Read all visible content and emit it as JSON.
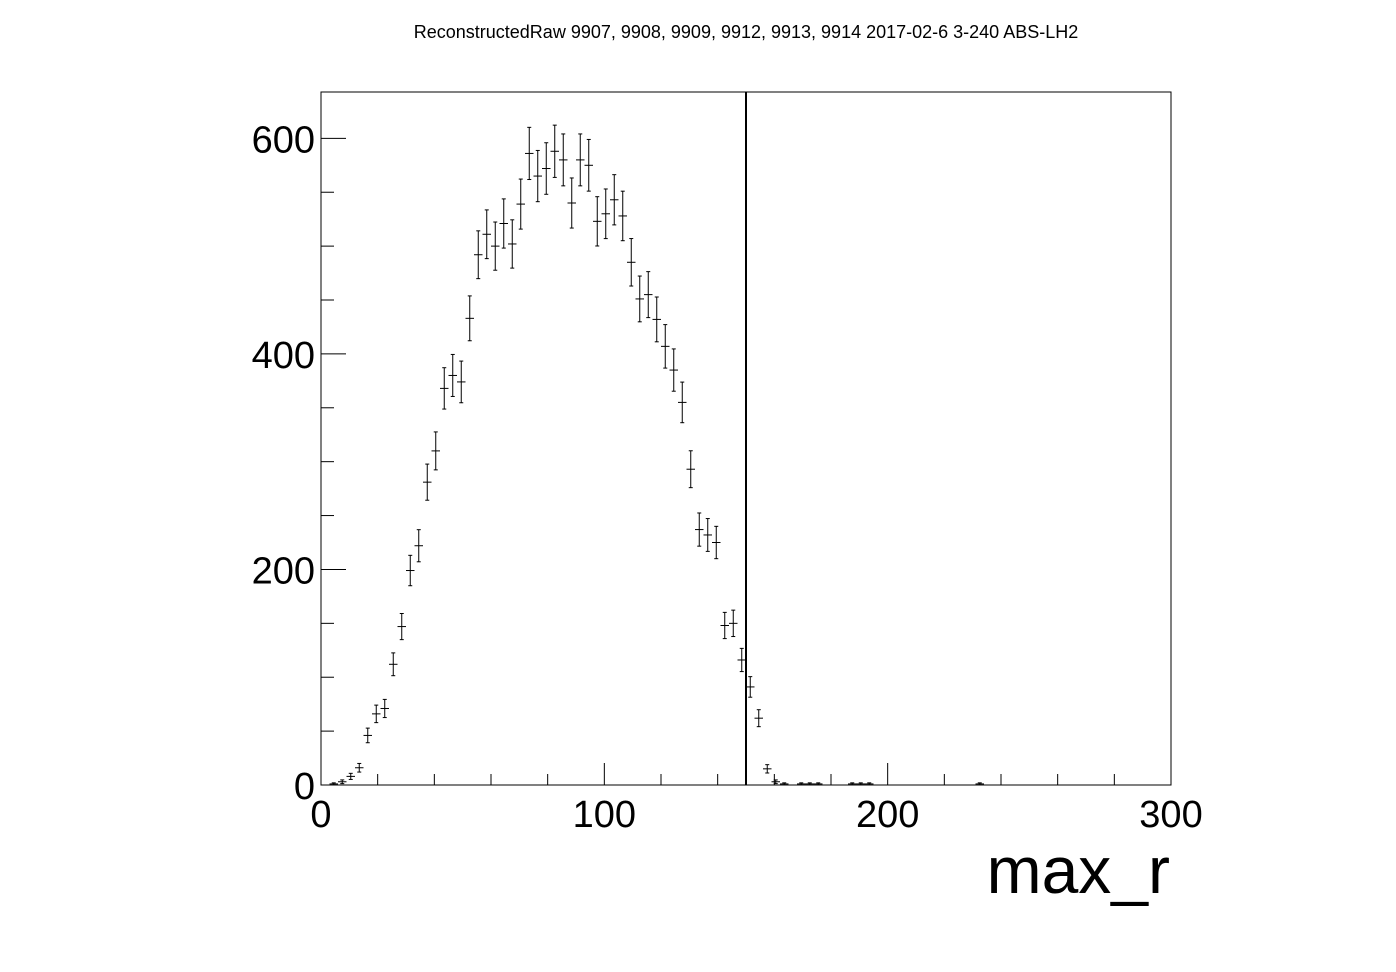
{
  "chart_data": {
    "type": "scatter",
    "title": "ReconstructedRaw 9907, 9908, 9909, 9912, 9913, 9914 2017-02-6 3-240 ABS-LH2",
    "xlabel": "max_r",
    "ylabel": "",
    "xlim": [
      0,
      300
    ],
    "ylim": [
      0,
      643
    ],
    "x_ticks": [
      "0",
      "100",
      "200",
      "300"
    ],
    "y_ticks": [
      "0",
      "200",
      "400",
      "600"
    ],
    "x_major_ticks": [
      0,
      100,
      200,
      300
    ],
    "x_minor_step": 20,
    "y_major_ticks": [
      0,
      200,
      400,
      600
    ],
    "y_minor_step": 50,
    "cut_line_x": 150,
    "grid": false,
    "legend": "none",
    "bin_half_width": 1.5,
    "series": [
      {
        "x": [
          4.5,
          7.5,
          10.5,
          13.5,
          16.5,
          19.5,
          22.5,
          25.5,
          28.5,
          31.5,
          34.5,
          37.5,
          40.5,
          43.5,
          46.5,
          49.5,
          52.5,
          55.5,
          58.5,
          61.5,
          64.5,
          67.5,
          70.5,
          73.5,
          76.5,
          79.5,
          82.5,
          85.5,
          88.5,
          91.5,
          94.5,
          97.5,
          100.5,
          103.5,
          106.5,
          109.5,
          112.5,
          115.5,
          118.5,
          121.5,
          124.5,
          127.5,
          130.5,
          133.5,
          136.5,
          139.5,
          142.5,
          145.5,
          148.5,
          151.5,
          154.5,
          157.5,
          160.5,
          163.5,
          169.5,
          172.5,
          175.5,
          187.5,
          190.5,
          193.5,
          232.5
        ],
        "y": [
          1,
          3,
          8,
          16,
          46,
          66,
          71,
          112,
          147,
          199,
          222,
          281,
          310,
          368,
          380,
          374,
          433,
          492,
          511,
          500,
          521,
          502,
          539,
          586,
          565,
          572,
          588,
          580,
          540,
          580,
          575,
          523,
          530,
          543,
          528,
          485,
          451,
          455,
          432,
          407,
          385,
          355,
          293,
          237,
          232,
          225,
          148,
          150,
          116,
          91,
          62,
          15,
          3,
          1,
          1,
          1,
          1,
          1,
          1,
          1,
          1
        ]
      }
    ]
  }
}
